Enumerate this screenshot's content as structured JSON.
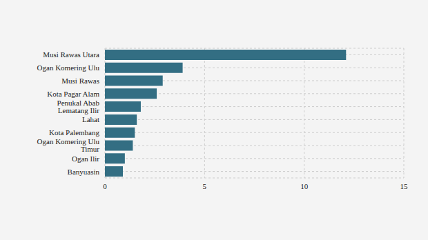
{
  "chart_data": {
    "type": "bar",
    "orientation": "horizontal",
    "categories": [
      "Musi Rawas Utara",
      "Ogan Komering Ulu",
      "Musi Rawas",
      "Kota Pagar Alam",
      "Penukal Abab Lematang Ilir",
      "Lahat",
      "Kota Palembang",
      "Ogan Komering Ulu Timur",
      "Ogan Ilir",
      "Banyuasin"
    ],
    "values": [
      12.1,
      3.9,
      2.9,
      2.6,
      1.8,
      1.6,
      1.5,
      1.4,
      1.0,
      0.9
    ],
    "color": "#336e83",
    "xlim": [
      0,
      15
    ],
    "xticks": [
      0,
      5,
      10,
      15
    ],
    "grid": true
  }
}
